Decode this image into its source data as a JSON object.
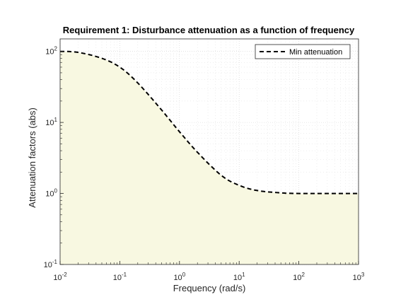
{
  "chart_data": {
    "type": "line",
    "title": "Requirement 1: Disturbance attenuation as a function of frequency",
    "xlabel": "Frequency (rad/s)",
    "ylabel": "Attenuation factors (abs)",
    "xscale": "log",
    "yscale": "log",
    "xlim": [
      0.01,
      1000
    ],
    "ylim": [
      0.1,
      150
    ],
    "x_ticks": [
      {
        "value": 0.01,
        "base": "10",
        "exp": "-2"
      },
      {
        "value": 0.1,
        "base": "10",
        "exp": "-1"
      },
      {
        "value": 1,
        "base": "10",
        "exp": "0"
      },
      {
        "value": 10,
        "base": "10",
        "exp": "1"
      },
      {
        "value": 100,
        "base": "10",
        "exp": "2"
      },
      {
        "value": 1000,
        "base": "10",
        "exp": "3"
      }
    ],
    "y_ticks": [
      {
        "value": 0.1,
        "base": "10",
        "exp": "-1"
      },
      {
        "value": 1,
        "base": "10",
        "exp": "0"
      },
      {
        "value": 10,
        "base": "10",
        "exp": "1"
      },
      {
        "value": 100,
        "base": "10",
        "exp": "2"
      }
    ],
    "grid": true,
    "minor_grid": true,
    "legend_position": "top-right",
    "shaded_region": {
      "color": "#f8f8e1",
      "description_bound_series": "Min attenuation",
      "side": "below"
    },
    "series": [
      {
        "name": "Min attenuation",
        "style": "dashed",
        "color": "#000000",
        "x": [
          0.01,
          0.02,
          0.05,
          0.1,
          0.2,
          0.5,
          1,
          2,
          5,
          10,
          20,
          50,
          100,
          1000
        ],
        "y": [
          100,
          97,
          80,
          60,
          36,
          15,
          7.4,
          3.8,
          1.8,
          1.3,
          1.1,
          1.02,
          1.0,
          1.0
        ]
      }
    ]
  }
}
